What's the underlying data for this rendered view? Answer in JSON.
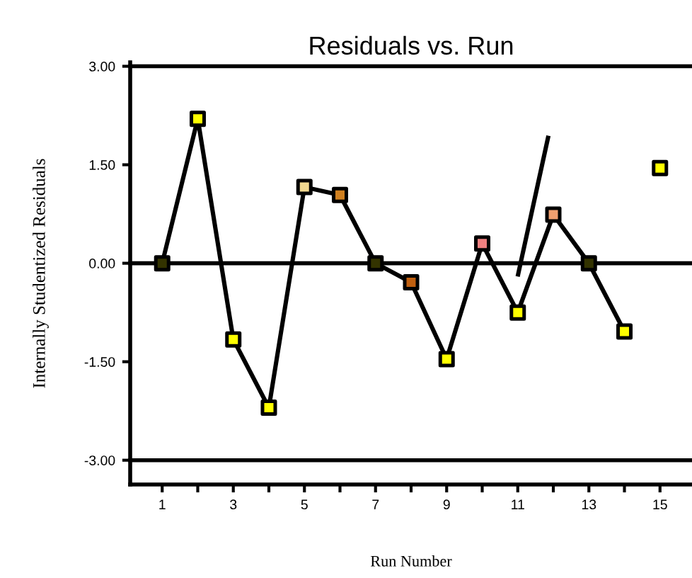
{
  "chart_data": {
    "type": "line",
    "title": "Residuals vs. Run",
    "xlabel": "Run Number",
    "ylabel": "Internally Studentized Residuals",
    "x": [
      1,
      2,
      3,
      4,
      5,
      6,
      7,
      8,
      9,
      10,
      11,
      12,
      13,
      14
    ],
    "series": [
      {
        "color": "#000000",
        "marker": "square",
        "values": [
          0,
          2.2,
          -1.16,
          -2.2,
          1.16,
          1.04,
          0,
          -0.29,
          -1.46,
          0.3,
          -0.75,
          0.74,
          0,
          -1.04
        ],
        "colors": [
          "#333300",
          "#ffff00",
          "#ffff00",
          "#ffff00",
          "#f0d890",
          "#d08020",
          "#333300",
          "#c06010",
          "#ffff00",
          "#f08080",
          "#ffff00",
          "#f0a070",
          "#333300",
          "#ffff00"
        ]
      },
      {
        "type": "scatter",
        "color": "#ffff00",
        "marker": "square",
        "x": [
          15
        ],
        "values": [
          1.45
        ]
      },
      {
        "type": "line",
        "color": "#000000",
        "marker": "none",
        "x": [
          11.01,
          11.85
        ],
        "values": [
          -0.17,
          1.91
        ]
      }
    ],
    "xlim": [
      0.1,
      15.9
    ],
    "ylim": [
      -3.37,
      3.06
    ],
    "xticks": [
      1,
      {
        "value": 2,
        "label": null
      },
      3,
      {
        "value": 4,
        "label": null
      },
      5,
      {
        "value": 6,
        "label": null
      },
      7,
      {
        "value": 8,
        "label": null
      },
      9,
      {
        "value": 10,
        "label": null
      },
      11,
      {
        "value": 12,
        "label": null
      },
      13,
      {
        "value": 14,
        "label": null
      },
      15
    ],
    "yticks": [
      {
        "value": 3,
        "label": "3.00"
      },
      {
        "value": 1.5,
        "label": "1.50"
      },
      {
        "value": 0,
        "label": "0.00"
      },
      {
        "value": -1.5,
        "label": "-1.50"
      },
      {
        "value": -3,
        "label": "-3.00"
      }
    ],
    "ref_lines": [
      {
        "axis": "y",
        "value": 3,
        "color": "#000000"
      },
      {
        "axis": "y",
        "value": 0,
        "color": "#000000"
      },
      {
        "axis": "y",
        "value": -3,
        "color": "#000000"
      }
    ],
    "grid": false,
    "legend": false
  }
}
